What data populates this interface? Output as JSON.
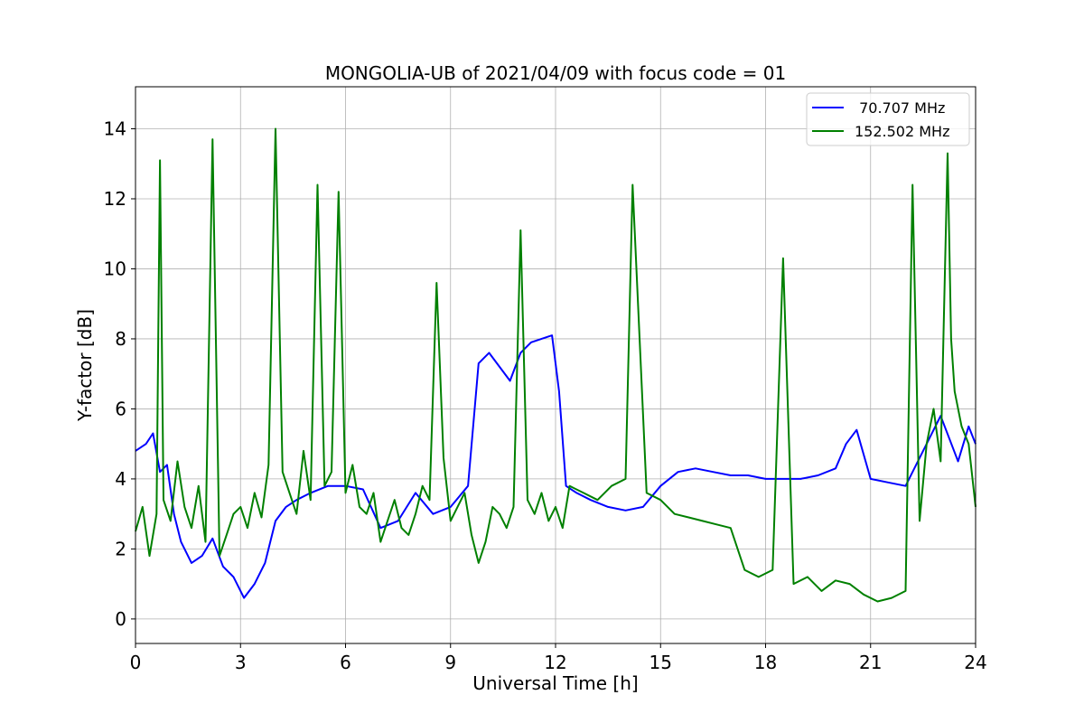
{
  "chart_data": {
    "type": "line",
    "title": "MONGOLIA-UB of 2021/04/09 with focus code = 01",
    "xlabel": "Universal Time [h]",
    "ylabel": "Y-factor [dB]",
    "xlim": [
      0,
      24
    ],
    "ylim": [
      -0.7,
      15.2
    ],
    "xticks": [
      0,
      3,
      6,
      9,
      12,
      15,
      18,
      21,
      24
    ],
    "yticks": [
      0,
      2,
      4,
      6,
      8,
      10,
      12,
      14
    ],
    "grid": true,
    "legend": "top-right",
    "series": [
      {
        "name": " 70.707 MHz",
        "color": "#0000ff",
        "x": [
          0,
          0.3,
          0.5,
          0.7,
          0.9,
          1.1,
          1.3,
          1.6,
          1.9,
          2.2,
          2.5,
          2.8,
          3.1,
          3.4,
          3.7,
          4.0,
          4.3,
          4.6,
          5.0,
          5.5,
          6.0,
          6.5,
          7.0,
          7.5,
          8.0,
          8.5,
          9.0,
          9.5,
          9.8,
          10.1,
          10.4,
          10.7,
          11.0,
          11.3,
          11.6,
          11.9,
          12.1,
          12.3,
          12.6,
          13.0,
          13.5,
          14.0,
          14.5,
          15.0,
          15.5,
          16.0,
          16.5,
          17.0,
          17.5,
          18.0,
          18.5,
          19.0,
          19.5,
          20.0,
          20.3,
          20.6,
          21.0,
          21.5,
          22.0,
          22.5,
          23.0,
          23.5,
          23.8,
          24.0
        ],
        "y": [
          4.8,
          5.0,
          5.3,
          4.2,
          4.4,
          3.0,
          2.2,
          1.6,
          1.8,
          2.3,
          1.5,
          1.2,
          0.6,
          1.0,
          1.6,
          2.8,
          3.2,
          3.4,
          3.6,
          3.8,
          3.8,
          3.7,
          2.6,
          2.8,
          3.6,
          3.0,
          3.2,
          3.8,
          7.3,
          7.6,
          7.2,
          6.8,
          7.6,
          7.9,
          8.0,
          8.1,
          6.5,
          3.8,
          3.6,
          3.4,
          3.2,
          3.1,
          3.2,
          3.8,
          4.2,
          4.3,
          4.2,
          4.1,
          4.1,
          4.0,
          4.0,
          4.0,
          4.1,
          4.3,
          5.0,
          5.4,
          4.0,
          3.9,
          3.8,
          4.8,
          5.8,
          4.5,
          5.5,
          5.0
        ]
      },
      {
        "name": "152.502 MHz",
        "color": "#008000",
        "x": [
          0,
          0.2,
          0.4,
          0.6,
          0.7,
          0.8,
          1.0,
          1.2,
          1.4,
          1.6,
          1.8,
          2.0,
          2.2,
          2.4,
          2.6,
          2.8,
          3.0,
          3.2,
          3.4,
          3.6,
          3.8,
          4.0,
          4.2,
          4.4,
          4.6,
          4.8,
          5.0,
          5.2,
          5.4,
          5.6,
          5.8,
          6.0,
          6.2,
          6.4,
          6.6,
          6.8,
          7.0,
          7.2,
          7.4,
          7.6,
          7.8,
          8.0,
          8.2,
          8.4,
          8.6,
          8.8,
          9.0,
          9.2,
          9.4,
          9.6,
          9.8,
          10.0,
          10.2,
          10.4,
          10.6,
          10.8,
          11.0,
          11.2,
          11.4,
          11.6,
          11.8,
          12.0,
          12.2,
          12.4,
          12.8,
          13.2,
          13.6,
          14.0,
          14.2,
          14.6,
          15.0,
          15.4,
          15.8,
          16.2,
          16.6,
          17.0,
          17.4,
          17.8,
          18.2,
          18.5,
          18.8,
          19.2,
          19.6,
          20.0,
          20.4,
          20.8,
          21.2,
          21.6,
          22.0,
          22.2,
          22.4,
          22.6,
          22.8,
          23.0,
          23.2,
          23.3,
          23.4,
          23.6,
          23.8,
          24.0
        ],
        "y": [
          2.5,
          3.2,
          1.8,
          3.0,
          13.1,
          3.4,
          2.8,
          4.5,
          3.2,
          2.6,
          3.8,
          2.2,
          13.7,
          1.8,
          2.4,
          3.0,
          3.2,
          2.6,
          3.6,
          2.9,
          4.4,
          14.0,
          4.2,
          3.6,
          3.0,
          4.8,
          3.4,
          12.4,
          3.8,
          4.2,
          12.2,
          3.6,
          4.4,
          3.2,
          3.0,
          3.6,
          2.2,
          2.8,
          3.4,
          2.6,
          2.4,
          3.0,
          3.8,
          3.4,
          9.6,
          4.6,
          2.8,
          3.2,
          3.6,
          2.4,
          1.6,
          2.2,
          3.2,
          3.0,
          2.6,
          3.2,
          11.1,
          3.4,
          3.0,
          3.6,
          2.8,
          3.2,
          2.6,
          3.8,
          3.6,
          3.4,
          3.8,
          4.0,
          12.4,
          3.6,
          3.4,
          3.0,
          2.9,
          2.8,
          2.7,
          2.6,
          1.4,
          1.2,
          1.4,
          10.3,
          1.0,
          1.2,
          0.8,
          1.1,
          1.0,
          0.7,
          0.5,
          0.6,
          0.8,
          12.4,
          2.8,
          5.0,
          6.0,
          4.5,
          13.3,
          8.0,
          6.5,
          5.5,
          5.0,
          3.2
        ]
      }
    ]
  }
}
